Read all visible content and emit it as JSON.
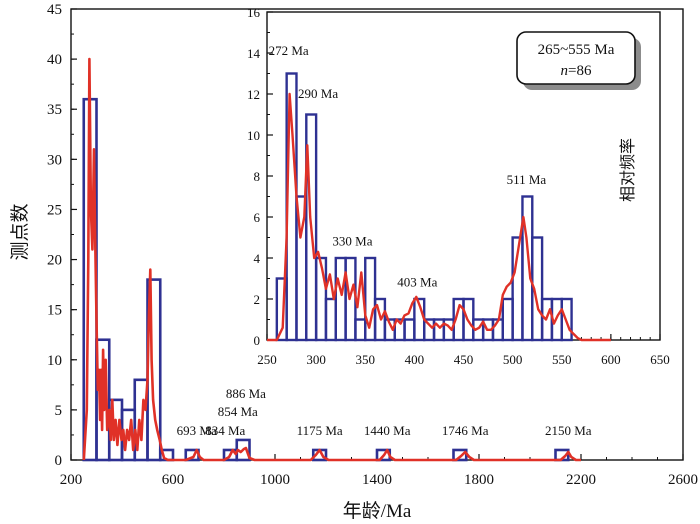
{
  "chart_data": [
    {
      "id": "main",
      "type": "bar",
      "subtype": "histogram-with-probability-density-curve",
      "xlabel": "年龄/Ma",
      "ylabel": "测点数",
      "xlim": [
        200,
        2600
      ],
      "ylim": [
        0,
        45
      ],
      "xticks": [
        200,
        600,
        1000,
        1400,
        1800,
        2200,
        2600
      ],
      "yticks": [
        0,
        5,
        10,
        15,
        20,
        25,
        30,
        35,
        40,
        45
      ],
      "bin_width": 50,
      "histogram": [
        {
          "x0": 250,
          "x1": 300,
          "count": 36
        },
        {
          "x0": 300,
          "x1": 350,
          "count": 12
        },
        {
          "x0": 350,
          "x1": 400,
          "count": 6
        },
        {
          "x0": 400,
          "x1": 450,
          "count": 5
        },
        {
          "x0": 450,
          "x1": 500,
          "count": 8
        },
        {
          "x0": 500,
          "x1": 550,
          "count": 18
        },
        {
          "x0": 550,
          "x1": 600,
          "count": 1
        },
        {
          "x0": 650,
          "x1": 700,
          "count": 1
        },
        {
          "x0": 800,
          "x1": 850,
          "count": 1
        },
        {
          "x0": 850,
          "x1": 900,
          "count": 2
        },
        {
          "x0": 1150,
          "x1": 1200,
          "count": 1
        },
        {
          "x0": 1400,
          "x1": 1450,
          "count": 1
        },
        {
          "x0": 1700,
          "x1": 1750,
          "count": 1
        },
        {
          "x0": 2100,
          "x1": 2150,
          "count": 1
        }
      ],
      "curve": [
        [
          250,
          0
        ],
        [
          262,
          5
        ],
        [
          268,
          20
        ],
        [
          272,
          40
        ],
        [
          278,
          25
        ],
        [
          284,
          21
        ],
        [
          290,
          31
        ],
        [
          295,
          22
        ],
        [
          300,
          14
        ],
        [
          305,
          7
        ],
        [
          310,
          9
        ],
        [
          314,
          4
        ],
        [
          318,
          9
        ],
        [
          322,
          3
        ],
        [
          326,
          11
        ],
        [
          330,
          5
        ],
        [
          336,
          10
        ],
        [
          342,
          3
        ],
        [
          350,
          5
        ],
        [
          356,
          2
        ],
        [
          362,
          6
        ],
        [
          368,
          2
        ],
        [
          375,
          4
        ],
        [
          382,
          1.5
        ],
        [
          390,
          4
        ],
        [
          398,
          2
        ],
        [
          405,
          3
        ],
        [
          412,
          1
        ],
        [
          420,
          3
        ],
        [
          428,
          2
        ],
        [
          436,
          4
        ],
        [
          444,
          1
        ],
        [
          452,
          3
        ],
        [
          460,
          1
        ],
        [
          468,
          4
        ],
        [
          476,
          2
        ],
        [
          484,
          6
        ],
        [
          492,
          5
        ],
        [
          500,
          8
        ],
        [
          505,
          14
        ],
        [
          511,
          19
        ],
        [
          516,
          10
        ],
        [
          522,
          6
        ],
        [
          530,
          4
        ],
        [
          538,
          3
        ],
        [
          548,
          2
        ],
        [
          556,
          1
        ],
        [
          565,
          0.2
        ],
        [
          580,
          0
        ],
        [
          650,
          0
        ],
        [
          680,
          0.3
        ],
        [
          693,
          1
        ],
        [
          705,
          0.3
        ],
        [
          720,
          0
        ],
        [
          800,
          0
        ],
        [
          820,
          0.3
        ],
        [
          834,
          1
        ],
        [
          846,
          0.6
        ],
        [
          854,
          1
        ],
        [
          866,
          0.8
        ],
        [
          878,
          1.1
        ],
        [
          886,
          1.2
        ],
        [
          900,
          0.2
        ],
        [
          920,
          0
        ],
        [
          1140,
          0
        ],
        [
          1160,
          0.5
        ],
        [
          1175,
          1
        ],
        [
          1190,
          0.3
        ],
        [
          1210,
          0
        ],
        [
          1410,
          0
        ],
        [
          1428,
          0.5
        ],
        [
          1440,
          1
        ],
        [
          1452,
          0.3
        ],
        [
          1470,
          0
        ],
        [
          1710,
          0
        ],
        [
          1730,
          0.4
        ],
        [
          1746,
          0.8
        ],
        [
          1762,
          0.3
        ],
        [
          1780,
          0
        ],
        [
          2120,
          0
        ],
        [
          2138,
          0.4
        ],
        [
          2150,
          0.8
        ],
        [
          2162,
          0.3
        ],
        [
          2180,
          0
        ],
        [
          2200,
          0
        ]
      ],
      "peak_labels": [
        {
          "text": "693 Ma",
          "x": 693,
          "y": 2.5
        },
        {
          "text": "834 Ma",
          "x": 805,
          "y": 2.5
        },
        {
          "text": "854 Ma",
          "x": 854,
          "y": 4.4
        },
        {
          "text": "886 Ma",
          "x": 886,
          "y": 6.2
        },
        {
          "text": "1175 Ma",
          "x": 1175,
          "y": 2.5
        },
        {
          "text": "1440 Ma",
          "x": 1440,
          "y": 2.5
        },
        {
          "text": "1746 Ma",
          "x": 1746,
          "y": 2.5
        },
        {
          "text": "2150 Ma",
          "x": 2150,
          "y": 2.5
        }
      ],
      "colors": {
        "bars": "#2e3192",
        "curve": "#e03127",
        "axis": "#111111"
      }
    },
    {
      "id": "inset",
      "type": "bar",
      "subtype": "histogram-with-probability-density-curve",
      "ylabel": "相对频率",
      "xlim": [
        250,
        650
      ],
      "ylim": [
        0,
        16
      ],
      "xticks": [
        250,
        300,
        350,
        400,
        450,
        500,
        550,
        600,
        650
      ],
      "yticks": [
        0,
        2,
        4,
        6,
        8,
        10,
        12,
        14,
        16
      ],
      "bin_width": 10,
      "histogram": [
        {
          "x0": 260,
          "x1": 270,
          "count": 3
        },
        {
          "x0": 270,
          "x1": 280,
          "count": 13
        },
        {
          "x0": 280,
          "x1": 290,
          "count": 7
        },
        {
          "x0": 290,
          "x1": 300,
          "count": 11
        },
        {
          "x0": 300,
          "x1": 310,
          "count": 4
        },
        {
          "x0": 310,
          "x1": 320,
          "count": 2
        },
        {
          "x0": 320,
          "x1": 330,
          "count": 4
        },
        {
          "x0": 330,
          "x1": 340,
          "count": 4
        },
        {
          "x0": 340,
          "x1": 350,
          "count": 1
        },
        {
          "x0": 350,
          "x1": 360,
          "count": 4
        },
        {
          "x0": 360,
          "x1": 370,
          "count": 2
        },
        {
          "x0": 370,
          "x1": 380,
          "count": 1
        },
        {
          "x0": 380,
          "x1": 390,
          "count": 1
        },
        {
          "x0": 390,
          "x1": 400,
          "count": 1
        },
        {
          "x0": 400,
          "x1": 410,
          "count": 2
        },
        {
          "x0": 410,
          "x1": 420,
          "count": 1
        },
        {
          "x0": 420,
          "x1": 430,
          "count": 1
        },
        {
          "x0": 430,
          "x1": 440,
          "count": 1
        },
        {
          "x0": 440,
          "x1": 450,
          "count": 2
        },
        {
          "x0": 450,
          "x1": 460,
          "count": 2
        },
        {
          "x0": 460,
          "x1": 470,
          "count": 1
        },
        {
          "x0": 470,
          "x1": 480,
          "count": 1
        },
        {
          "x0": 480,
          "x1": 490,
          "count": 1
        },
        {
          "x0": 490,
          "x1": 500,
          "count": 2
        },
        {
          "x0": 500,
          "x1": 510,
          "count": 5
        },
        {
          "x0": 510,
          "x1": 520,
          "count": 7
        },
        {
          "x0": 520,
          "x1": 530,
          "count": 5
        },
        {
          "x0": 530,
          "x1": 540,
          "count": 2
        },
        {
          "x0": 540,
          "x1": 550,
          "count": 2
        },
        {
          "x0": 550,
          "x1": 560,
          "count": 2
        }
      ],
      "curve": [
        [
          250,
          0
        ],
        [
          260,
          0
        ],
        [
          266,
          0.6
        ],
        [
          270,
          5
        ],
        [
          273,
          12
        ],
        [
          276,
          10
        ],
        [
          280,
          7
        ],
        [
          284,
          5
        ],
        [
          288,
          6
        ],
        [
          291,
          9.5
        ],
        [
          294,
          6
        ],
        [
          298,
          4
        ],
        [
          302,
          4.3
        ],
        [
          306,
          3.5
        ],
        [
          310,
          2.5
        ],
        [
          314,
          3.2
        ],
        [
          318,
          2
        ],
        [
          322,
          3
        ],
        [
          326,
          2.2
        ],
        [
          330,
          3.3
        ],
        [
          334,
          2
        ],
        [
          338,
          2.7
        ],
        [
          342,
          1.6
        ],
        [
          346,
          3.3
        ],
        [
          350,
          1.2
        ],
        [
          354,
          0.6
        ],
        [
          358,
          1.5
        ],
        [
          362,
          1.7
        ],
        [
          366,
          1
        ],
        [
          370,
          1.4
        ],
        [
          374,
          0.9
        ],
        [
          378,
          0.5
        ],
        [
          382,
          1
        ],
        [
          386,
          0.8
        ],
        [
          390,
          1.2
        ],
        [
          394,
          1.3
        ],
        [
          398,
          1.8
        ],
        [
          402,
          2.1
        ],
        [
          406,
          1.6
        ],
        [
          410,
          1
        ],
        [
          414,
          0.8
        ],
        [
          418,
          0.6
        ],
        [
          422,
          0.8
        ],
        [
          426,
          0.6
        ],
        [
          430,
          0.8
        ],
        [
          434,
          0.7
        ],
        [
          438,
          0.5
        ],
        [
          442,
          1
        ],
        [
          446,
          1.7
        ],
        [
          450,
          1.5
        ],
        [
          454,
          1
        ],
        [
          458,
          0.7
        ],
        [
          462,
          0.5
        ],
        [
          466,
          0.6
        ],
        [
          470,
          0.9
        ],
        [
          474,
          0.5
        ],
        [
          478,
          0.5
        ],
        [
          482,
          0.7
        ],
        [
          486,
          1
        ],
        [
          490,
          2.2
        ],
        [
          494,
          2.6
        ],
        [
          498,
          2.8
        ],
        [
          502,
          3.3
        ],
        [
          506,
          4.5
        ],
        [
          511,
          6
        ],
        [
          514,
          5
        ],
        [
          518,
          3
        ],
        [
          522,
          2.5
        ],
        [
          526,
          1.5
        ],
        [
          530,
          1.2
        ],
        [
          534,
          1
        ],
        [
          538,
          1.5
        ],
        [
          542,
          0.8
        ],
        [
          546,
          1.2
        ],
        [
          550,
          1.5
        ],
        [
          554,
          1
        ],
        [
          558,
          0.5
        ],
        [
          562,
          0.3
        ],
        [
          566,
          0.1
        ],
        [
          570,
          0
        ],
        [
          600,
          0
        ]
      ],
      "peak_labels": [
        {
          "text": "272 Ma",
          "x": 272,
          "y": 13.9
        },
        {
          "text": "290 Ma",
          "x": 302,
          "y": 11.8
        },
        {
          "text": "330 Ma",
          "x": 337,
          "y": 4.6
        },
        {
          "text": "403 Ma",
          "x": 403,
          "y": 2.6
        },
        {
          "text": "511 Ma",
          "x": 514,
          "y": 7.6
        }
      ],
      "legend": {
        "range_text": "265~555 Ma",
        "n_prefix": "n",
        "n_text": "=86"
      },
      "colors": {
        "bars": "#2e3192",
        "curve": "#e03127",
        "axis": "#111111"
      }
    }
  ]
}
